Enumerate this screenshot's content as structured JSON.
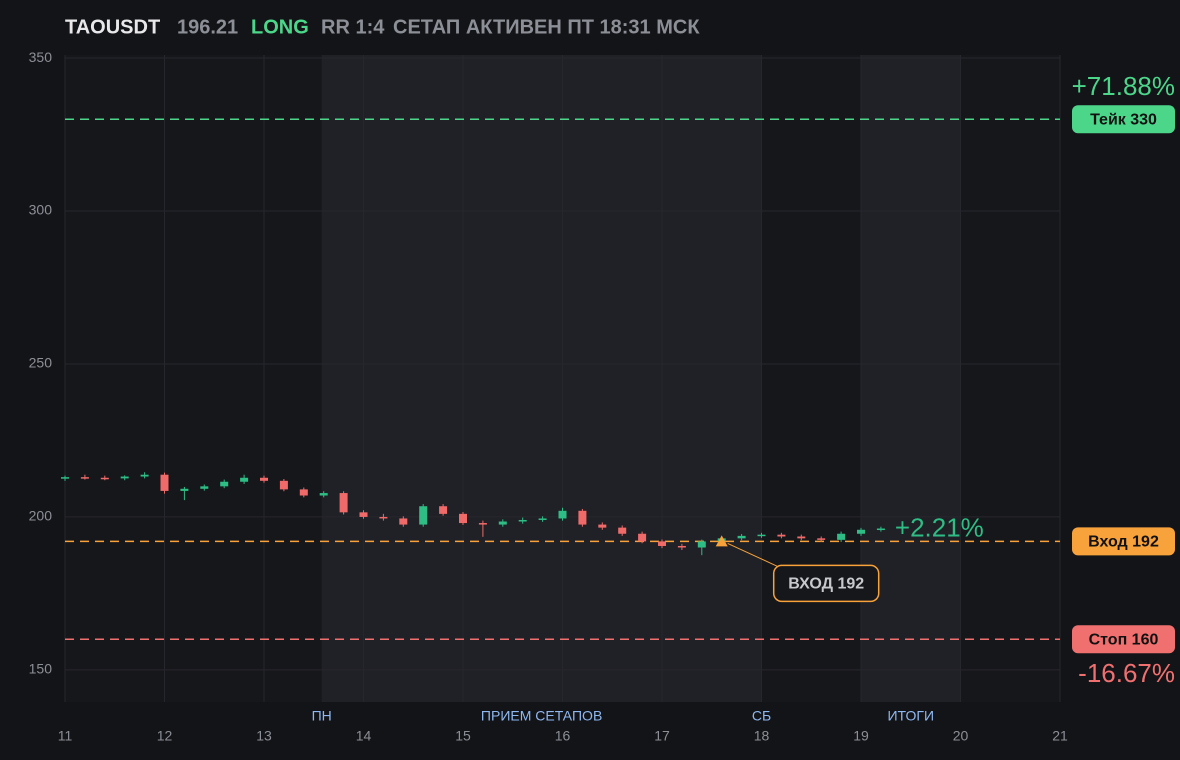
{
  "chart_data": {
    "type": "candlestick",
    "header": {
      "symbol": "TAOUSDT",
      "price": "196.21",
      "side": "LONG",
      "rr": "RR 1:4",
      "status": "СЕТАП АКТИВЕН ПТ 18:31 МСК"
    },
    "x": [
      11.0,
      11.2,
      11.4,
      11.6,
      11.8,
      12.0,
      12.2,
      12.4,
      12.6,
      12.8,
      13.0,
      13.2,
      13.4,
      13.6,
      13.8,
      14.0,
      14.2,
      14.4,
      14.6,
      14.8,
      15.0,
      15.2,
      15.4,
      15.6,
      15.8,
      16.0,
      16.2,
      16.4,
      16.6,
      16.8,
      17.0,
      17.2,
      17.4,
      17.6,
      17.8,
      18.0,
      18.2,
      18.4,
      18.6,
      18.8,
      19.0,
      19.2
    ],
    "open": [
      212.5,
      213,
      212.8,
      212.6,
      213.2,
      213.8,
      208.5,
      209.2,
      210,
      211.5,
      212.8,
      211.8,
      209,
      207,
      207.8,
      201.5,
      200,
      199.5,
      197.5,
      203.5,
      201,
      198,
      197.5,
      198.5,
      199,
      199.5,
      202,
      197.5,
      196.5,
      194.5,
      192,
      190.5,
      190,
      192,
      193,
      193.8,
      194.2,
      193.6,
      193,
      192.5,
      194.5,
      195.8
    ],
    "high": [
      213.5,
      213.8,
      213.5,
      213.6,
      214.6,
      214.5,
      209.8,
      210.6,
      212.2,
      213.8,
      213.5,
      212.4,
      209.6,
      208.4,
      208.4,
      202.2,
      201,
      200.2,
      204.2,
      204.2,
      201.6,
      198.8,
      199.2,
      199.8,
      200.2,
      203,
      202.6,
      198.2,
      197.2,
      195.2,
      192.6,
      191.2,
      192.6,
      193.6,
      194.4,
      194.8,
      194.8,
      194.2,
      193.6,
      195.2,
      196.4,
      196.8
    ],
    "low": [
      211.8,
      212.2,
      212,
      212,
      212.6,
      207.6,
      205.5,
      208.6,
      209.4,
      210.8,
      211.2,
      208.4,
      206.4,
      206.4,
      200.8,
      199.4,
      198.8,
      196.8,
      196.8,
      200.4,
      197.4,
      193.5,
      196.8,
      197.8,
      198.4,
      198.8,
      196.8,
      195.8,
      193.8,
      191.4,
      189.8,
      189.2,
      187.5,
      191.4,
      192.4,
      193.2,
      193,
      192.4,
      191.8,
      191.8,
      193.8,
      195.2
    ],
    "close": [
      213,
      212.8,
      212.6,
      213.2,
      213.8,
      208.5,
      209.2,
      210,
      211.5,
      212.8,
      211.8,
      209,
      207,
      207.8,
      201.5,
      200,
      199.5,
      197.5,
      203.5,
      201,
      198,
      197.5,
      198.5,
      199,
      199.5,
      202,
      197.5,
      196.5,
      194.5,
      192,
      190.5,
      190,
      192,
      193,
      193.8,
      194.2,
      193.6,
      193,
      192.5,
      194.5,
      195.8,
      196.21
    ],
    "up_color": "#2ebd85",
    "down_color": "#f06a6a",
    "xlim": [
      11,
      21
    ],
    "ylim": [
      139.5,
      351
    ],
    "xticks": [
      11,
      12,
      13,
      14,
      15,
      16,
      17,
      18,
      19,
      20,
      21
    ],
    "yticks": [
      150,
      200,
      250,
      300,
      350
    ],
    "grid": true,
    "shaded": [
      [
        13.58,
        18
      ],
      [
        19,
        20
      ]
    ],
    "sessions": [
      {
        "label": "ПН",
        "x": 13.58
      },
      {
        "label": "ПРИЕМ СЕТАПОВ",
        "x": 15.79
      },
      {
        "label": "СБ",
        "x": 18
      },
      {
        "label": "ИТОГИ",
        "x": 19.5
      }
    ],
    "levels": [
      {
        "name": "Тейк 330",
        "value": 330,
        "color": "#4cd68a",
        "change": "+71.88%"
      },
      {
        "name": "Вход 192",
        "value": 192,
        "color": "#f7a23b",
        "change": "+2.21%"
      },
      {
        "name": "Стоп 160",
        "value": 160,
        "color": "#f07070",
        "change": "-16.67%"
      }
    ],
    "entry_marker": {
      "label": "ВХОД 192",
      "x": 17.6,
      "y": 192,
      "color": "#f7a23b"
    }
  }
}
